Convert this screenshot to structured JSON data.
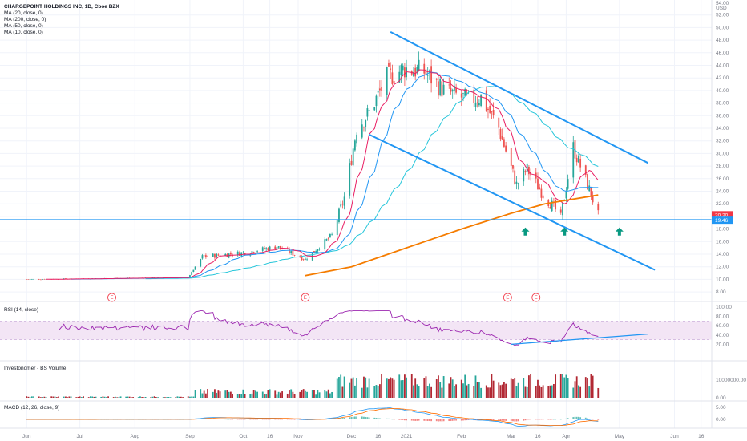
{
  "header": {
    "title": "CHARGEPOINT HOLDINGS INC, 1D, Cboe BZX",
    "indicators": [
      "MA (20, close, 0)",
      "MA (200, close, 0)",
      "MA (50, close, 0)",
      "MA (10, close, 0)"
    ],
    "currency": "USD"
  },
  "price_axis": {
    "top_label": "54.00",
    "ticks": [
      "52.00",
      "50.00",
      "48.00",
      "46.00",
      "44.00",
      "42.00",
      "40.00",
      "38.00",
      "36.00",
      "34.00",
      "32.00",
      "30.00",
      "28.00",
      "26.00",
      "24.00",
      "22.00",
      "20.00",
      "18.00",
      "16.00",
      "14.00",
      "12.00",
      "10.00",
      "8.00"
    ],
    "tick_values": [
      52,
      50,
      48,
      46,
      44,
      42,
      40,
      38,
      36,
      34,
      32,
      30,
      28,
      26,
      24,
      22,
      20,
      18,
      16,
      14,
      12,
      10,
      8
    ],
    "last_price": "20.20",
    "support_level": "19.46",
    "last_price_value": 20.2,
    "support_value": 19.46,
    "last_price_color": "#f23645",
    "support_color": "#2196f3"
  },
  "time_axis": {
    "labels": [
      "Jun",
      "Jul",
      "Aug",
      "Sep",
      "Oct",
      "16",
      "Nov",
      "Dec",
      "16",
      "2021",
      "Feb",
      "Mar",
      "16",
      "Apr",
      "May",
      "Jun",
      "16"
    ]
  },
  "earnings_markers": [
    "E",
    "E",
    "E",
    "E"
  ],
  "rsi": {
    "title": "RSI (14, close)",
    "ticks": [
      "100.00",
      "80.00",
      "60.00",
      "40.00",
      "20.00"
    ],
    "tick_values": [
      100,
      80,
      60,
      40,
      20
    ],
    "band_upper": 70,
    "band_lower": 30,
    "line_color": "#9c27b0",
    "band_color": "#f3e5f5"
  },
  "volume": {
    "title": "Investonomer - BS Volume",
    "ticks": [
      "10000000.00",
      "0.00"
    ],
    "up_color": "#26a69a",
    "down_color": "#b22833"
  },
  "macd": {
    "title": "MACD (12, 26, close, 9)",
    "ticks": [
      "5.00",
      "0.00"
    ],
    "tick_values": [
      5,
      0
    ],
    "macd_color": "#2196f3",
    "signal_color": "#ff6d00"
  },
  "colors": {
    "up_candle": "#26a69a",
    "down_candle": "#ef5350",
    "ma10": "#e91e63",
    "ma20": "#2196f3",
    "ma50": "#26c6da",
    "ma200": "#f57c00",
    "channel": "#2196f3",
    "arrow": "#089981"
  },
  "chart_data": {
    "type": "candlestick",
    "series": [
      {
        "name": "MA (10, close, 0)"
      },
      {
        "name": "MA (20, close, 0)"
      },
      {
        "name": "MA (50, close, 0)"
      },
      {
        "name": "MA (200, close, 0)"
      }
    ],
    "price_anchors": [
      [
        "2020-06-01",
        10.0
      ],
      [
        "2020-08-31",
        10.3
      ],
      [
        "2020-09-08",
        13.6
      ],
      [
        "2020-10-01",
        14.2
      ],
      [
        "2020-10-20",
        15.2
      ],
      [
        "2020-11-05",
        13.2
      ],
      [
        "2020-11-20",
        17.0
      ],
      [
        "2020-11-27",
        23.0
      ],
      [
        "2020-12-04",
        34.0
      ],
      [
        "2020-12-11",
        36.5
      ],
      [
        "2020-12-21",
        42.0
      ],
      [
        "2020-12-31",
        43.5
      ],
      [
        "2021-01-11",
        43.0
      ],
      [
        "2021-01-22",
        40.0
      ],
      [
        "2021-02-05",
        38.5
      ],
      [
        "2021-02-12",
        39.0
      ],
      [
        "2021-02-22",
        34.0
      ],
      [
        "2021-03-04",
        25.0
      ],
      [
        "2021-03-10",
        27.5
      ],
      [
        "2021-03-19",
        23.5
      ],
      [
        "2021-03-29",
        20.0
      ],
      [
        "2021-04-05",
        31.0
      ],
      [
        "2021-04-09",
        28.0
      ],
      [
        "2021-04-15",
        23.5
      ],
      [
        "2021-04-19",
        20.2
      ]
    ],
    "channel_upper": [
      [
        "2020-12-23",
        49.3
      ],
      [
        "2021-05-17",
        28.5
      ]
    ],
    "channel_lower": [
      [
        "2020-12-11",
        33.0
      ],
      [
        "2021-05-21",
        11.5
      ]
    ],
    "support_line": 19.46,
    "rsi_trendline": [
      [
        "2021-03-01",
        20
      ],
      [
        "2021-05-17",
        42
      ]
    ],
    "ylim": [
      6,
      55
    ]
  }
}
